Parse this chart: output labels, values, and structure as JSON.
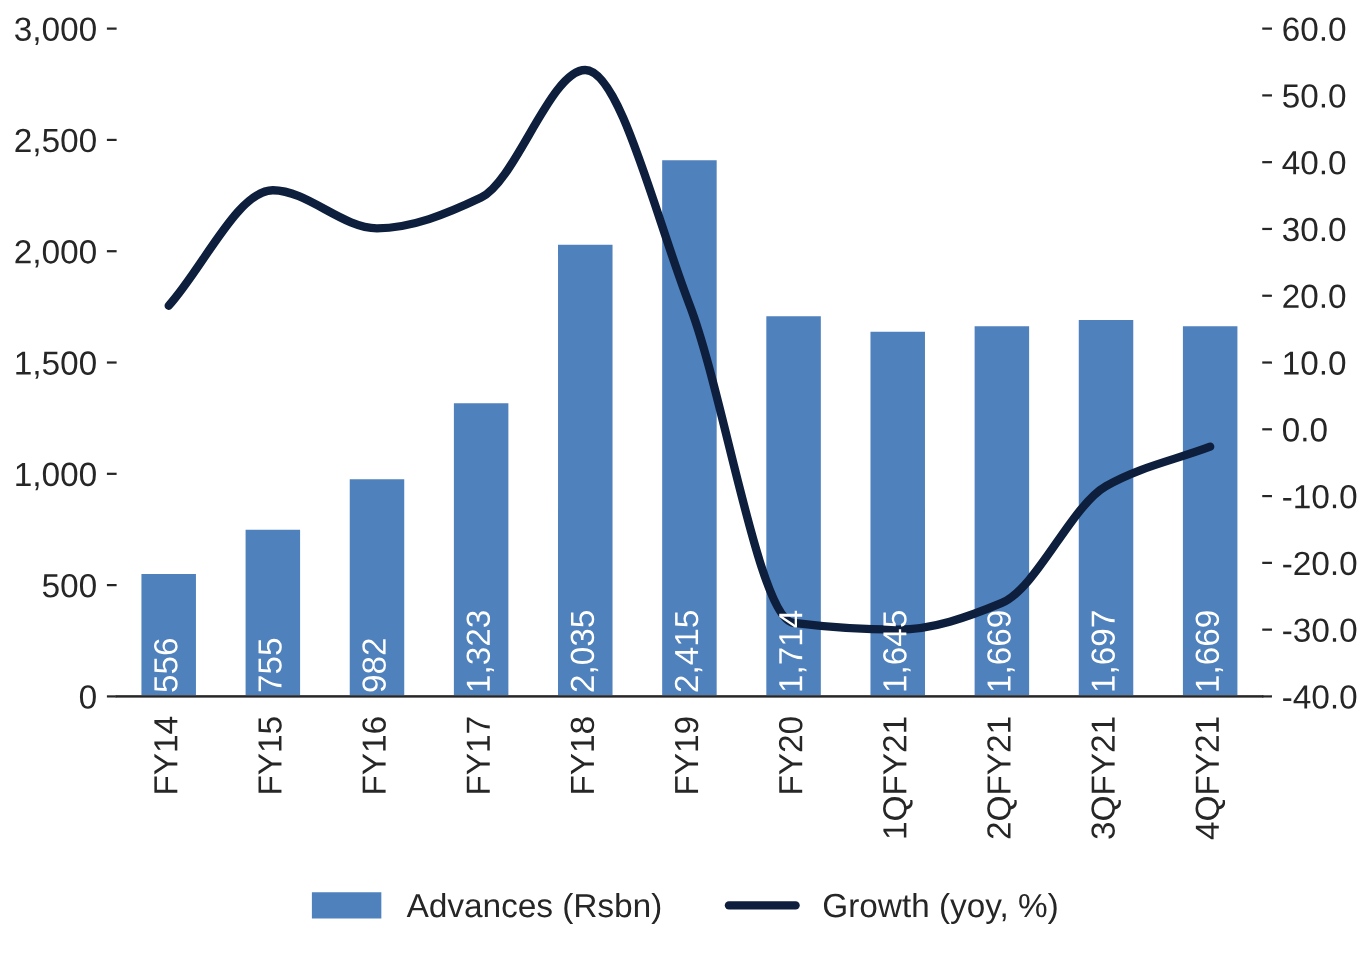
{
  "chart_data": {
    "type": "bar",
    "categories": [
      "FY14",
      "FY15",
      "FY16",
      "FY17",
      "FY18",
      "FY19",
      "FY20",
      "1QFY21",
      "2QFY21",
      "3QFY21",
      "4QFY21"
    ],
    "series": [
      {
        "name": "Advances (Rsbn)",
        "color": "#4f81bd",
        "values": [
          556,
          755,
          982,
          1323,
          2035,
          2415,
          1714,
          1645,
          1669,
          1697,
          1669
        ],
        "value_labels": [
          "556",
          "755",
          "982",
          "1,323",
          "2,035",
          "2,415",
          "1,714",
          "1,645",
          "1,669",
          "1,697",
          "1,669"
        ]
      },
      {
        "name": "Growth (yoy, %)",
        "type": "line",
        "axis": "y2",
        "color": "#0d1f3c",
        "values": [
          18.5,
          35.8,
          30.1,
          34.7,
          53.8,
          18.7,
          -29.0,
          -30.0,
          -26.0,
          -8.5,
          -2.6
        ]
      }
    ],
    "ylim": [
      0,
      3000
    ],
    "yticks": [
      {
        "value": 0,
        "label": "0"
      },
      {
        "value": 500,
        "label": "500"
      },
      {
        "value": 1000,
        "label": "1,000"
      },
      {
        "value": 1500,
        "label": "1,500"
      },
      {
        "value": 2000,
        "label": "2,000"
      },
      {
        "value": 2500,
        "label": "2,500"
      },
      {
        "value": 3000,
        "label": "3,000"
      }
    ],
    "y2lim": [
      -40,
      60
    ],
    "y2ticks": [
      {
        "value": -40,
        "label": "-40.0"
      },
      {
        "value": -30,
        "label": "-30.0"
      },
      {
        "value": -20,
        "label": "-20.0"
      },
      {
        "value": -10,
        "label": "-10.0"
      },
      {
        "value": 0,
        "label": "0.0"
      },
      {
        "value": 10,
        "label": "10.0"
      },
      {
        "value": 20,
        "label": "20.0"
      },
      {
        "value": 30,
        "label": "30.0"
      },
      {
        "value": 40,
        "label": "40.0"
      },
      {
        "value": 50,
        "label": "50.0"
      },
      {
        "value": 60,
        "label": "60.0"
      }
    ],
    "legend": "bottom"
  }
}
